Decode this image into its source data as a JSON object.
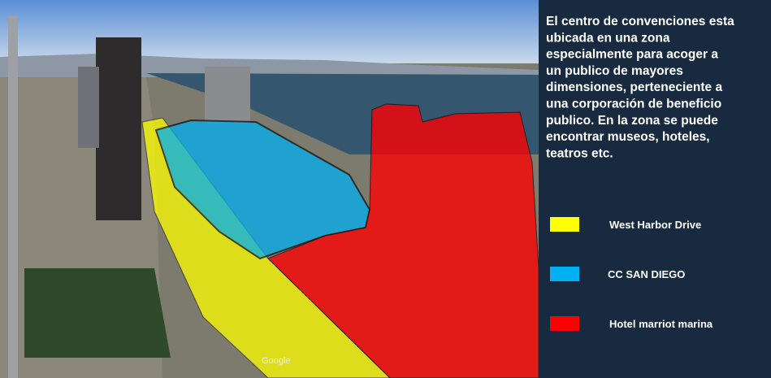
{
  "description": [
    "El centro de convenciones esta",
    "ubicada  en una zona",
    "especialmente para acoger a",
    "un publico de mayores",
    "dimensiones,  perteneciente a",
    "una corporación  de beneficio",
    "publico.  En la zona se puede",
    "encontrar museos,  hoteles,",
    "teatros etc."
  ],
  "legend": [
    {
      "name": "West Harbor Drive",
      "color": "#ffff00"
    },
    {
      "name": "CC SAN  DIEGO",
      "color": "#00b0f0"
    },
    {
      "name": "Hotel marriot marina",
      "color": "#ff0000"
    }
  ],
  "watermark": "Google"
}
